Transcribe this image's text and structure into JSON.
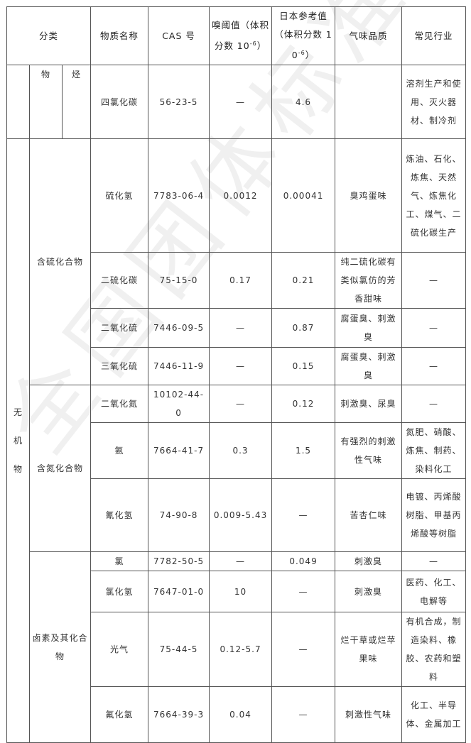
{
  "watermark": "全国团体标准信息平台",
  "header": {
    "category": "分类",
    "name": "物质名称",
    "cas": "CAS 号",
    "threshold": "嗅阈值（体积分数 10",
    "threshold_exp": "-6",
    "threshold_end": "）",
    "japan": "日本参考值（体积分数 10",
    "japan_exp": "-6",
    "japan_end": "）",
    "odor": "气味品质",
    "industry": "常见行业"
  },
  "partial_row": {
    "cat1": "物",
    "cat2": "烃",
    "name": "四氯化碳",
    "cas": "56-23-5",
    "threshold": "—",
    "japan": "4.6",
    "odor": "",
    "industry": "溶剂生产和使用、灭火器材、制冷剂"
  },
  "main_category": "无机物",
  "groups": [
    {
      "label": "含硫化合物",
      "rows": [
        {
          "name": "硫化氢",
          "cas": "7783-06-4",
          "threshold": "0.0012",
          "japan": "0.00041",
          "odor": "臭鸡蛋味",
          "industry": "炼油、石化、炼焦、天然气、炼焦化工、煤气、二硫化碳生产"
        },
        {
          "name": "二硫化碳",
          "cas": "75-15-0",
          "threshold": "0.17",
          "japan": "0.21",
          "odor": "纯二硫化碳有类似氯仿的芳香甜味",
          "industry": "—"
        },
        {
          "name": "二氧化硫",
          "cas": "7446-09-5",
          "threshold": "—",
          "japan": "0.87",
          "odor": "腐蛋臭、刺激臭",
          "industry": "—"
        },
        {
          "name": "三氧化硫",
          "cas": "7446-11-9",
          "threshold": "—",
          "japan": "0.15",
          "odor": "腐蛋臭、刺激臭",
          "industry": "—"
        }
      ]
    },
    {
      "label": "含氮化合物",
      "rows": [
        {
          "name": "二氧化氮",
          "cas": "10102-44-0",
          "threshold": "—",
          "japan": "0.12",
          "odor": "刺激臭、尿臭",
          "industry": "—"
        },
        {
          "name": "氨",
          "cas": "7664-41-7",
          "threshold": "0.3",
          "japan": "1.5",
          "odor": "有强烈的刺激性气味",
          "industry": "氮肥、硝酸、炼焦、制药、染料化工"
        },
        {
          "name": "氰化氢",
          "cas": "74-90-8",
          "threshold": "0.009-5.43",
          "japan": "—",
          "odor": "苦杏仁味",
          "industry": "电镀、丙烯酸树脂、甲基丙烯酸等树脂"
        }
      ]
    },
    {
      "label": "卤素及其化合物",
      "rows": [
        {
          "name": "氯",
          "cas": "7782-50-5",
          "threshold": "—",
          "japan": "0.049",
          "odor": "刺激臭",
          "industry": "—"
        },
        {
          "name": "氯化氢",
          "cas": "7647-01-0",
          "threshold": "10",
          "japan": "—",
          "odor": "刺激臭",
          "industry": "医药、化工、电解等"
        },
        {
          "name": "光气",
          "cas": "75-44-5",
          "threshold": "0.12-5.7",
          "japan": "—",
          "odor": "烂干草或烂苹果味",
          "industry": "有机合成，制造染料、橡胶、农药和塑料"
        },
        {
          "name": "氟化氢",
          "cas": "7664-39-3",
          "threshold": "0.04",
          "japan": "—",
          "odor": "刺激性气味",
          "industry": "化工、半导体、金属加工"
        }
      ]
    }
  ]
}
